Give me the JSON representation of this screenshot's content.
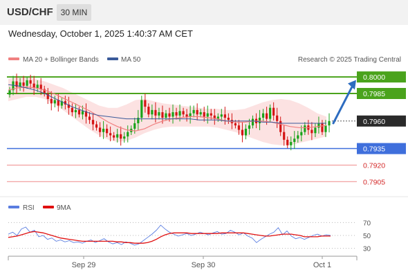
{
  "header": {
    "symbol": "USD/CHF",
    "timeframe": "30 MIN",
    "datetime": "Wednesday, October 1, 2025 1:40:37 AM CET"
  },
  "legend": {
    "ma20": "MA 20 + Bollinger Bands",
    "ma50": "MA 50",
    "credit": "Research © 2025 Trading Central"
  },
  "colors": {
    "bull": "#19a319",
    "bear": "#d41414",
    "ma20": "#f08080",
    "ma50": "#3a5a9a",
    "band": "#fbd8d8",
    "resistance": "#4aa31c",
    "pivot": "#3f6fdc",
    "support": "#ef8a8a",
    "arrow": "#2d6cc0",
    "rsi": "#5a7de0",
    "rsi_ma": "#e01010"
  },
  "chart_data": [
    {
      "type": "candlestick",
      "price_range": [
        0.7897,
        0.8007
      ],
      "x_ticks": [
        "Sep 29",
        "Sep 30",
        "Oct 1"
      ],
      "last_price": 0.796,
      "levels": [
        {
          "value": 0.8,
          "label": "0.8000",
          "kind": "resistance"
        },
        {
          "value": 0.7985,
          "label": "0.7985",
          "kind": "resistance"
        },
        {
          "value": 0.796,
          "label": "0.7960",
          "kind": "last"
        },
        {
          "value": 0.7935,
          "label": "0.7935",
          "kind": "pivot"
        },
        {
          "value": 0.792,
          "label": "0.7920",
          "kind": "support"
        },
        {
          "value": 0.7905,
          "label": "0.7905",
          "kind": "support"
        }
      ],
      "forecast_arrow": {
        "from": 0.7958,
        "to": 0.7996
      },
      "price_path": [
        0.7988,
        0.7996,
        0.7991,
        0.7995,
        0.7992,
        0.7997,
        0.7994,
        0.799,
        0.7993,
        0.7989,
        0.7985,
        0.798,
        0.7976,
        0.7979,
        0.7974,
        0.7978,
        0.7975,
        0.7972,
        0.7968,
        0.797,
        0.7966,
        0.7969,
        0.7964,
        0.7961,
        0.7957,
        0.7954,
        0.795,
        0.7953,
        0.7949,
        0.7947,
        0.7945,
        0.7948,
        0.7944,
        0.7946,
        0.795,
        0.7953,
        0.7958,
        0.7963,
        0.7979,
        0.7973,
        0.7966,
        0.797,
        0.7965,
        0.7968,
        0.7963,
        0.7967,
        0.7964,
        0.7968,
        0.7965,
        0.7969,
        0.7966,
        0.7964,
        0.7967,
        0.797,
        0.7966,
        0.7968,
        0.7964,
        0.7967,
        0.7965,
        0.7962,
        0.7964,
        0.7966,
        0.7963,
        0.7961,
        0.7958,
        0.7956,
        0.7952,
        0.7947,
        0.7953,
        0.7956,
        0.7962,
        0.7958,
        0.7963,
        0.7967,
        0.7962,
        0.7972,
        0.7965,
        0.796,
        0.795,
        0.7943,
        0.7938,
        0.7941,
        0.7944,
        0.7947,
        0.795,
        0.7956,
        0.7952,
        0.7949,
        0.7954,
        0.7958,
        0.795,
        0.7956,
        0.796
      ],
      "ma20": [
        0.7988,
        0.799,
        0.7991,
        0.799,
        0.7988,
        0.7985,
        0.7981,
        0.7977,
        0.7973,
        0.7969,
        0.7964,
        0.7959,
        0.7955,
        0.7952,
        0.7951,
        0.7953,
        0.7957,
        0.796,
        0.7962,
        0.7963,
        0.7964,
        0.7964,
        0.7963,
        0.7962,
        0.796,
        0.7959,
        0.7959,
        0.796,
        0.796,
        0.7959,
        0.7957,
        0.7955,
        0.7954,
        0.7954,
        0.7955,
        0.7956
      ],
      "ma50": [
        0.7993,
        0.7992,
        0.799,
        0.7988,
        0.7985,
        0.7981,
        0.7977,
        0.7973,
        0.797,
        0.7967,
        0.7965,
        0.7964,
        0.7963,
        0.7962,
        0.7962,
        0.7962,
        0.7962,
        0.7962,
        0.7962,
        0.7962,
        0.7962,
        0.7961,
        0.7961,
        0.7961,
        0.796,
        0.796,
        0.796,
        0.796,
        0.7959,
        0.7959,
        0.7958,
        0.7958,
        0.7958,
        0.7958,
        0.7958,
        0.7958
      ],
      "band_upper": [
        0.7998,
        0.8,
        0.8,
        0.7998,
        0.7996,
        0.7993,
        0.799,
        0.7986,
        0.7982,
        0.7978,
        0.7974,
        0.7972,
        0.7972,
        0.7975,
        0.7979,
        0.798,
        0.7978,
        0.7976,
        0.7975,
        0.7974,
        0.7973,
        0.7972,
        0.7971,
        0.7971,
        0.797,
        0.797,
        0.7971,
        0.7974,
        0.7977,
        0.7979,
        0.798,
        0.7979,
        0.7976,
        0.7972,
        0.7967,
        0.7964
      ],
      "band_lower": [
        0.7978,
        0.798,
        0.7982,
        0.7982,
        0.798,
        0.7976,
        0.797,
        0.7964,
        0.7958,
        0.7952,
        0.7947,
        0.7943,
        0.7941,
        0.7942,
        0.7945,
        0.7949,
        0.7952,
        0.7954,
        0.7955,
        0.7955,
        0.7955,
        0.7955,
        0.7955,
        0.7954,
        0.7952,
        0.795,
        0.7947,
        0.7944,
        0.7941,
        0.7939,
        0.7938,
        0.7938,
        0.794,
        0.7942,
        0.7944,
        0.7946
      ]
    },
    {
      "type": "line",
      "title": "RSI",
      "series": [
        {
          "name": "RSI",
          "values": [
            52,
            55,
            50,
            60,
            63,
            55,
            58,
            48,
            50,
            44,
            46,
            41,
            43,
            40,
            42,
            39,
            40,
            38,
            41,
            43,
            39,
            42,
            45,
            40,
            37,
            39,
            36,
            40,
            38,
            35,
            37,
            42,
            47,
            52,
            58,
            66,
            60,
            55,
            52,
            49,
            51,
            53,
            50,
            52,
            55,
            53,
            51,
            54,
            56,
            52,
            53,
            58,
            55,
            51,
            54,
            49,
            46,
            39,
            44,
            48,
            52,
            55,
            62,
            51,
            57,
            49,
            45,
            47,
            44,
            47,
            50,
            52,
            49,
            51,
            50
          ]
        },
        {
          "name": "9MA",
          "values": [
            47,
            48,
            49,
            51,
            53,
            55,
            56,
            55,
            54,
            52,
            50,
            48,
            46,
            45,
            44,
            43,
            42,
            41,
            41,
            41,
            41,
            41,
            41,
            41,
            41,
            40,
            40,
            39,
            39,
            38,
            38,
            38,
            39,
            41,
            44,
            48,
            51,
            53,
            54,
            54,
            54,
            54,
            53,
            53,
            53,
            53,
            53,
            53,
            53,
            54,
            54,
            54,
            54,
            54,
            54,
            53,
            52,
            51,
            50,
            49,
            49,
            50,
            51,
            52,
            52,
            52,
            51,
            50,
            48,
            48,
            48,
            48,
            49,
            49,
            49
          ]
        }
      ],
      "y_ticks": [
        70,
        50,
        30
      ],
      "ylim": [
        20,
        80
      ]
    }
  ]
}
